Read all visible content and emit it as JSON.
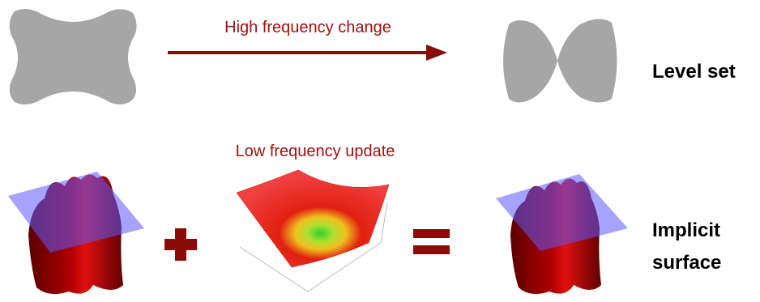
{
  "top": {
    "arrow_label": "High frequency change",
    "result_label": "Level set"
  },
  "bottom": {
    "update_label": "Low frequency update",
    "result_label": [
      "Implicit",
      "surface"
    ]
  }
}
